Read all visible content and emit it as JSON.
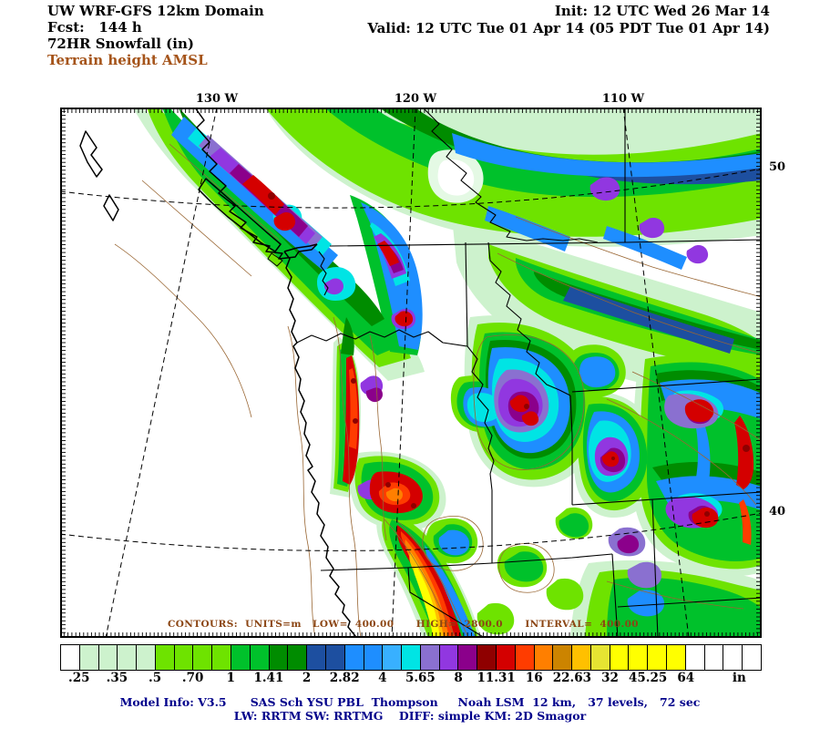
{
  "header": {
    "title": "UW WRF-GFS 12km Domain",
    "fcst": "Fcst:   144 h",
    "product": "72HR Snowfall (in)",
    "overlay": "Terrain height AMSL",
    "init": "Init: 12 UTC Wed 26 Mar 14",
    "valid": "Valid: 12 UTC Tue 01 Apr 14 (05 PDT Tue 01 Apr 14)"
  },
  "map": {
    "top_axis_labels": {
      "lon130": "130 W",
      "lon120": "120 W",
      "lon110": "110 W"
    },
    "right_axis_labels": {
      "lat50": "50",
      "lat40": "40"
    },
    "contour_info": "CONTOURS:  UNITS=m   LOW=  400.00      HIGH=  2800.0      INTERVAL=  400.00"
  },
  "colorbar": {
    "unit_label": "in",
    "tick_labels": [
      ".25",
      ".35",
      ".5",
      ".70",
      "1",
      "1.41",
      "2",
      "2.82",
      "4",
      "5.65",
      "8",
      "11.31",
      "16",
      "22.63",
      "32",
      "45.25",
      "64"
    ],
    "cell_colors": [
      "#ffffff",
      "#cdf2cd",
      "#cdf2cd",
      "#cdf2cd",
      "#cdf2cd",
      "#6ee300",
      "#6ee300",
      "#6ee300",
      "#6ee300",
      "#00c12b",
      "#00c12b",
      "#008c00",
      "#008c00",
      "#1d4fa0",
      "#1d4fa0",
      "#1e8eff",
      "#1e8eff",
      "#38b0ff",
      "#00e4e4",
      "#8a70d0",
      "#9137e0",
      "#8b008b",
      "#8f0000",
      "#d40000",
      "#ff3c00",
      "#ff7f00",
      "#cc8400",
      "#ffc000",
      "#e6e432",
      "#ffff00",
      "#ffff00",
      "#ffff00",
      "#ffff00",
      "#ffffff",
      "#ffffff",
      "#ffffff",
      "#ffffff"
    ]
  },
  "footer": {
    "line1": "Model Info: V3.5      SAS Sch YSU PBL  Thompson     Noah LSM  12 km,   37 levels,   72 sec",
    "line2": "LW: RRTM SW: RRTMG    DIFF: simple KM: 2D Smagor"
  },
  "colors": {
    "overlay_text": "#a5541a",
    "contour_info_text": "#8b4513",
    "terrain_contour": "#996633",
    "footer_text": "#00008b"
  }
}
